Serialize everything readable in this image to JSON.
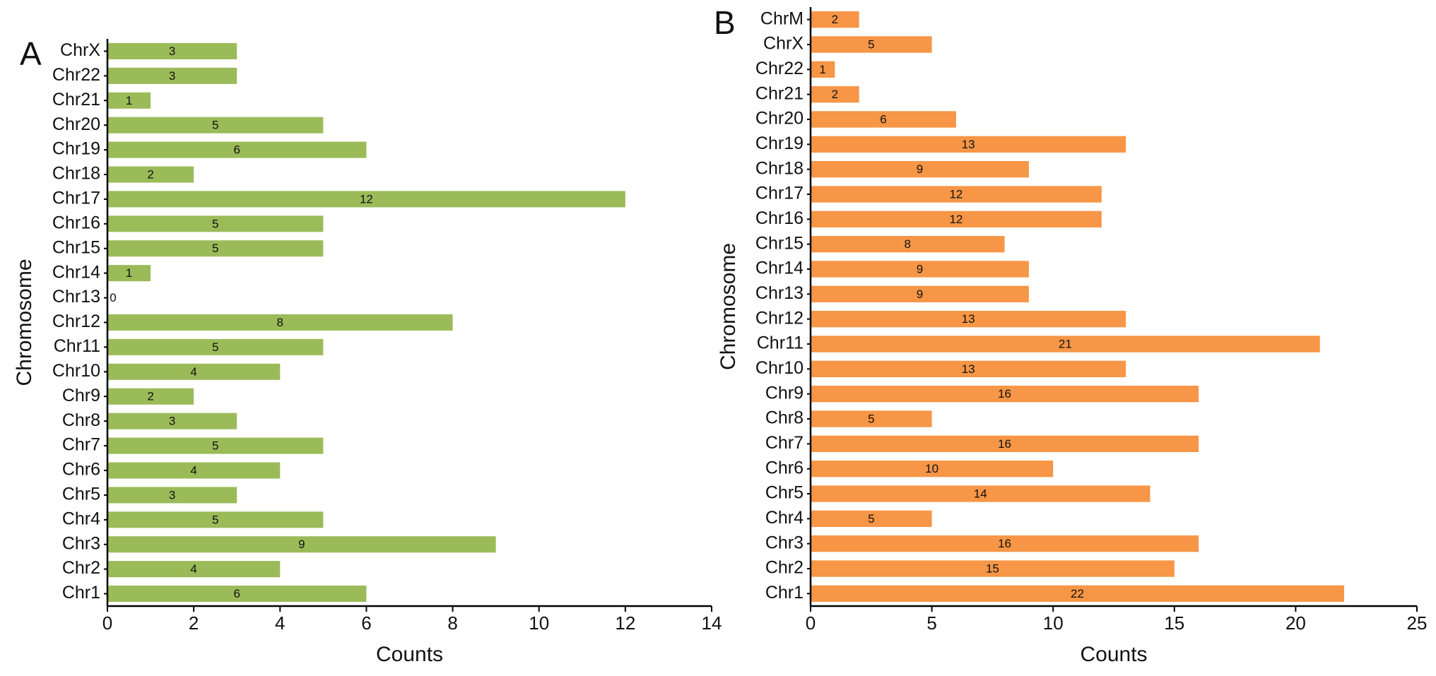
{
  "chart_data": [
    {
      "type": "bar",
      "panel": "A",
      "xlabel": "Counts",
      "ylabel": "Chromosome",
      "categories": [
        "Chr1",
        "Chr2",
        "Chr3",
        "Chr4",
        "Chr5",
        "Chr6",
        "Chr7",
        "Chr8",
        "Chr9",
        "Chr10",
        "Chr11",
        "Chr12",
        "Chr13",
        "Chr14",
        "Chr15",
        "Chr16",
        "Chr17",
        "Chr18",
        "Chr19",
        "Chr20",
        "Chr21",
        "Chr22",
        "ChrX"
      ],
      "values": [
        6,
        4,
        9,
        5,
        3,
        4,
        5,
        3,
        2,
        4,
        5,
        8,
        0,
        1,
        5,
        5,
        12,
        2,
        6,
        5,
        1,
        3,
        3
      ],
      "color": "#9bbb59",
      "xlim": [
        0,
        14
      ],
      "xticks": [
        0,
        2,
        4,
        6,
        8,
        10,
        12,
        14
      ]
    },
    {
      "type": "bar",
      "panel": "B",
      "xlabel": "Counts",
      "ylabel": "Chromosome",
      "categories": [
        "Chr1",
        "Chr2",
        "Chr3",
        "Chr4",
        "Chr5",
        "Chr6",
        "Chr7",
        "Chr8",
        "Chr9",
        "Chr10",
        "Chr11",
        "Chr12",
        "Chr13",
        "Chr14",
        "Chr15",
        "Chr16",
        "Chr17",
        "Chr18",
        "Chr19",
        "Chr20",
        "Chr21",
        "Chr22",
        "ChrX",
        "ChrM"
      ],
      "values": [
        22,
        15,
        16,
        5,
        14,
        10,
        16,
        5,
        16,
        13,
        21,
        13,
        9,
        9,
        8,
        12,
        12,
        9,
        13,
        6,
        2,
        1,
        5,
        2
      ],
      "color": "#f79646",
      "xlim": [
        0,
        25
      ],
      "xticks": [
        0,
        5,
        10,
        15,
        20,
        25
      ]
    }
  ]
}
